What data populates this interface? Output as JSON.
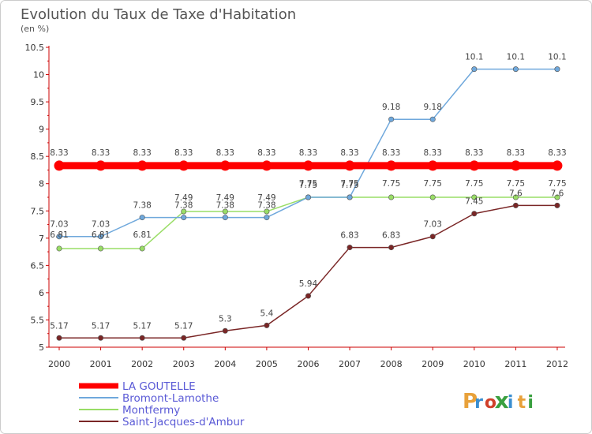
{
  "chart_data": {
    "type": "line",
    "title": "Evolution du Taux de Taxe d'Habitation",
    "subtitle": "(en %)",
    "x": [
      "2000",
      "2001",
      "2002",
      "2003",
      "2004",
      "2005",
      "2006",
      "2007",
      "2008",
      "2009",
      "2010",
      "2011",
      "2012"
    ],
    "ylim": [
      5,
      10.5
    ],
    "yticks": [
      "5",
      "5.5",
      "6",
      "6.5",
      "7",
      "7.5",
      "8",
      "8.5",
      "9",
      "9.5",
      "10",
      "10.5"
    ],
    "grid": "none",
    "legend_position": "bottom-left",
    "series": [
      {
        "name": "LA GOUTELLE",
        "color": "#ff0000",
        "emphasis": true,
        "values": [
          8.33,
          8.33,
          8.33,
          8.33,
          8.33,
          8.33,
          8.33,
          8.33,
          8.33,
          8.33,
          8.33,
          8.33,
          8.33
        ],
        "labels": [
          "8.33",
          "8.33",
          "8.33",
          "8.33",
          "8.33",
          "8.33",
          "8.33",
          "8.33",
          "8.33",
          "8.33",
          "8.33",
          "8.33",
          "8.33"
        ]
      },
      {
        "name": "Bromont-Lamothe",
        "color": "#6fa8dc",
        "values": [
          7.03,
          7.03,
          7.38,
          7.38,
          7.38,
          7.38,
          7.75,
          7.75,
          9.18,
          9.18,
          10.1,
          10.1,
          10.1
        ],
        "labels": [
          "7.03",
          "7.03",
          "7.38",
          "7.38",
          "7.38",
          "7.38",
          "7.75",
          "7.75",
          "9.18",
          "9.18",
          "10.1",
          "10.1",
          "10.1"
        ]
      },
      {
        "name": "Montfermy",
        "color": "#99dd66",
        "values": [
          6.81,
          6.81,
          6.81,
          7.49,
          7.49,
          7.49,
          7.75,
          7.75,
          7.75,
          7.75,
          7.75,
          7.75,
          7.75
        ],
        "labels": [
          "6.81",
          "6.81",
          "6.81",
          "7.49",
          "7.49",
          "7.49",
          "7.75",
          "7.75",
          "7.75",
          "7.75",
          "7.75",
          "7.75",
          "7.75"
        ]
      },
      {
        "name": "Saint-Jacques-d'Ambur",
        "color": "#7a2626",
        "values": [
          5.17,
          5.17,
          5.17,
          5.17,
          5.3,
          5.4,
          5.94,
          6.83,
          6.83,
          7.03,
          7.45,
          7.6,
          7.6
        ],
        "labels": [
          "5.17",
          "5.17",
          "5.17",
          "5.17",
          "5.3",
          "5.4",
          "5.94",
          "6.83",
          "6.83",
          "7.03",
          "7.45",
          "7.6",
          "7.6"
        ]
      }
    ]
  },
  "brand": {
    "text": "Proxiti",
    "colors": [
      "#e8a13a",
      "#3a8ed0",
      "#d0402a",
      "#3aa040",
      "#3a8ed0",
      "#e8a13a",
      "#3aa040"
    ]
  },
  "colors": {
    "axis": "#cc0000",
    "tick_text": "#333333",
    "title": "#555555",
    "legend_text": "#5a5ad6",
    "border": "#cccccc"
  }
}
